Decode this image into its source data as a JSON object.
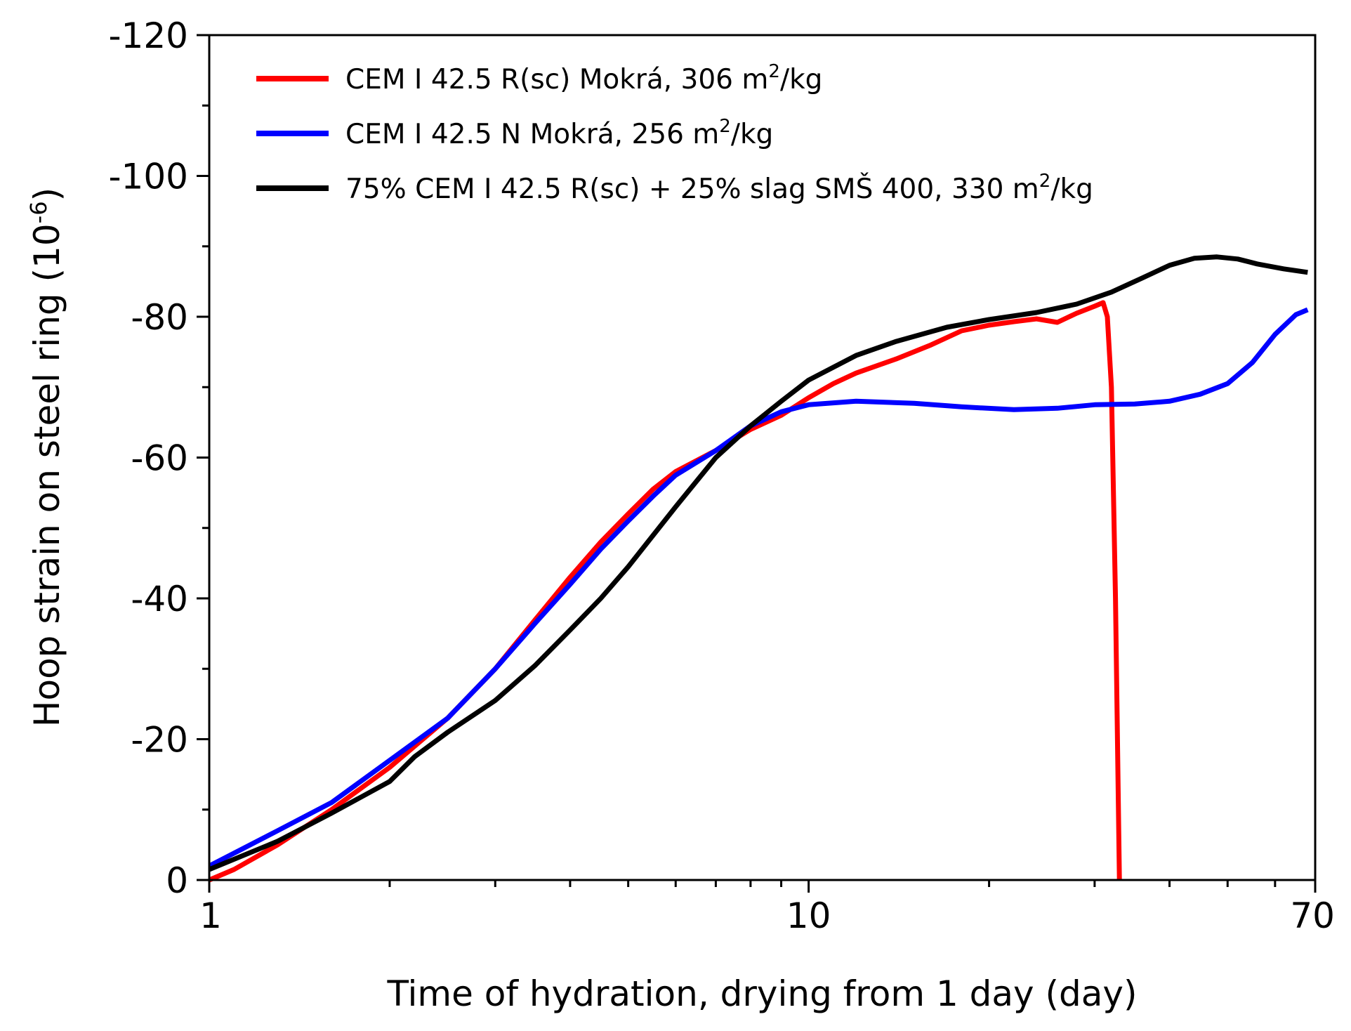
{
  "chart_data": {
    "type": "line",
    "xlabel": "Time of hydration, drying from 1 day (day)",
    "ylabel_main": "Hoop strain on steel ring (10",
    "ylabel_sup": "-6",
    "ylabel_tail": ")",
    "xscale": "log",
    "xlim": [
      1,
      70
    ],
    "ylim": [
      0,
      -120
    ],
    "x_ticks": [
      {
        "value": 1,
        "label": "1"
      },
      {
        "value": 10,
        "label": "10"
      },
      {
        "value": 70,
        "label": "70"
      }
    ],
    "y_ticks": [
      {
        "value": 0,
        "label": "0"
      },
      {
        "value": -20,
        "label": "-20"
      },
      {
        "value": -40,
        "label": "-40"
      },
      {
        "value": -60,
        "label": "-60"
      },
      {
        "value": -80,
        "label": "-80"
      },
      {
        "value": -100,
        "label": "-100"
      },
      {
        "value": -120,
        "label": "-120"
      }
    ],
    "legend_position": "top-left",
    "grid": false,
    "series": [
      {
        "label_main": "CEM I 42.5 R(sc) Mokrá, 306 m",
        "label_sup": "2",
        "label_tail": "/kg",
        "color": "#ff0000",
        "points": [
          [
            1.0,
            0
          ],
          [
            1.1,
            -1.5
          ],
          [
            1.3,
            -5
          ],
          [
            1.6,
            -10
          ],
          [
            2.0,
            -16
          ],
          [
            2.5,
            -23
          ],
          [
            3.0,
            -30
          ],
          [
            3.5,
            -37
          ],
          [
            4.0,
            -43
          ],
          [
            4.5,
            -48
          ],
          [
            5.0,
            -52
          ],
          [
            5.5,
            -55.5
          ],
          [
            6.0,
            -58
          ],
          [
            7.0,
            -61
          ],
          [
            8.0,
            -64
          ],
          [
            9.0,
            -66
          ],
          [
            10.0,
            -68.5
          ],
          [
            11.0,
            -70.5
          ],
          [
            12.0,
            -72
          ],
          [
            14.0,
            -74
          ],
          [
            16.0,
            -76
          ],
          [
            18.0,
            -78
          ],
          [
            20.0,
            -78.8
          ],
          [
            22.0,
            -79.3
          ],
          [
            24.0,
            -79.7
          ],
          [
            26.0,
            -79.2
          ],
          [
            28.0,
            -80.5
          ],
          [
            30.0,
            -81.5
          ],
          [
            31.0,
            -82
          ],
          [
            31.5,
            -80
          ],
          [
            32.0,
            -70
          ],
          [
            32.5,
            -40
          ],
          [
            33.0,
            0
          ]
        ]
      },
      {
        "label_main": "CEM I 42.5 N Mokrá, 256 m",
        "label_sup": "2",
        "label_tail": "/kg",
        "color": "#0000ff",
        "points": [
          [
            1.0,
            -2
          ],
          [
            1.3,
            -7
          ],
          [
            1.6,
            -11
          ],
          [
            2.0,
            -17
          ],
          [
            2.5,
            -23
          ],
          [
            3.0,
            -30
          ],
          [
            3.5,
            -36.5
          ],
          [
            4.0,
            -42
          ],
          [
            4.5,
            -47
          ],
          [
            5.0,
            -51
          ],
          [
            5.5,
            -54.5
          ],
          [
            6.0,
            -57.5
          ],
          [
            7.0,
            -61
          ],
          [
            8.0,
            -64.5
          ],
          [
            9.0,
            -66.5
          ],
          [
            10.0,
            -67.5
          ],
          [
            12.0,
            -68
          ],
          [
            15.0,
            -67.7
          ],
          [
            18.0,
            -67.2
          ],
          [
            22.0,
            -66.8
          ],
          [
            26.0,
            -67
          ],
          [
            30.0,
            -67.5
          ],
          [
            35.0,
            -67.6
          ],
          [
            40.0,
            -68
          ],
          [
            45.0,
            -69
          ],
          [
            50.0,
            -70.5
          ],
          [
            55.0,
            -73.5
          ],
          [
            60.0,
            -77.5
          ],
          [
            65.0,
            -80.3
          ],
          [
            68.0,
            -81
          ]
        ]
      },
      {
        "label_main": "75% CEM I 42.5 R(sc) + 25% slag SMŠ 400, 330 m",
        "label_sup": "2",
        "label_tail": "/kg",
        "color": "#000000",
        "points": [
          [
            1.0,
            -1.5
          ],
          [
            1.3,
            -5.5
          ],
          [
            1.6,
            -9.5
          ],
          [
            2.0,
            -14
          ],
          [
            2.2,
            -17.5
          ],
          [
            2.5,
            -21
          ],
          [
            3.0,
            -25.5
          ],
          [
            3.5,
            -30.5
          ],
          [
            4.0,
            -35.5
          ],
          [
            4.5,
            -40
          ],
          [
            5.0,
            -44.5
          ],
          [
            6.0,
            -53
          ],
          [
            7.0,
            -60
          ],
          [
            8.0,
            -64.5
          ],
          [
            9.0,
            -68
          ],
          [
            10.0,
            -71
          ],
          [
            12.0,
            -74.5
          ],
          [
            14.0,
            -76.5
          ],
          [
            17.0,
            -78.5
          ],
          [
            20.0,
            -79.6
          ],
          [
            24.0,
            -80.6
          ],
          [
            28.0,
            -81.8
          ],
          [
            32.0,
            -83.5
          ],
          [
            36.0,
            -85.5
          ],
          [
            40.0,
            -87.3
          ],
          [
            44.0,
            -88.3
          ],
          [
            48.0,
            -88.5
          ],
          [
            52.0,
            -88.2
          ],
          [
            56.0,
            -87.5
          ],
          [
            62.0,
            -86.8
          ],
          [
            68.0,
            -86.3
          ]
        ]
      }
    ]
  }
}
